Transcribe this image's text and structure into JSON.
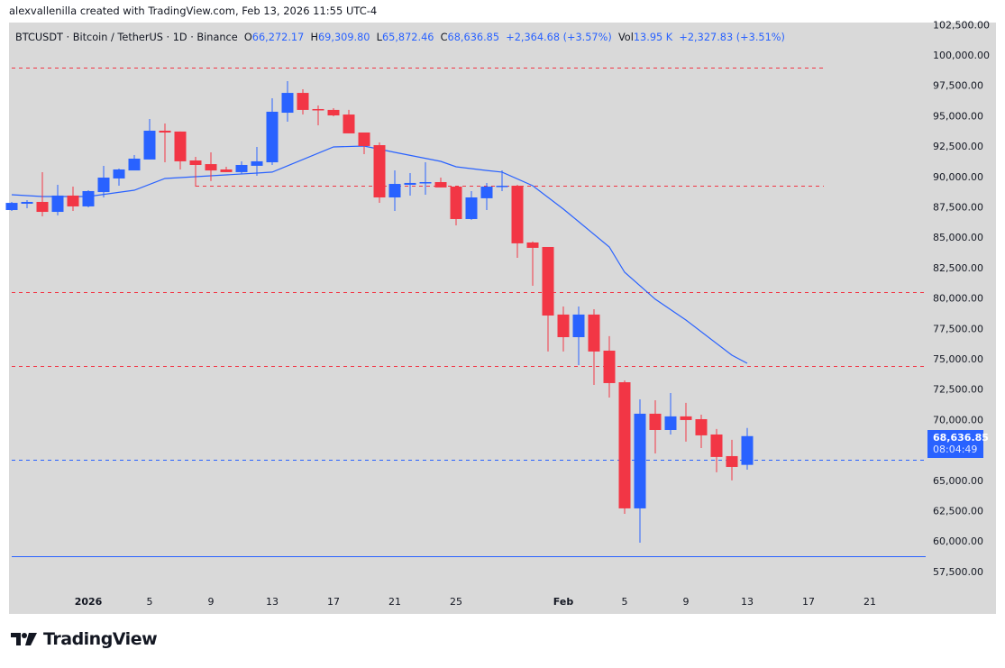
{
  "credit": "alexvallenilla created with TradingView.com, Feb 13, 2026 11:55 UTC-4",
  "legend": {
    "symbol": "BTCUSDT · Bitcoin / TetherUS · 1D · Binance",
    "o_label": "O",
    "o": "66,272.17",
    "h_label": "H",
    "h": "69,309.80",
    "l_label": "L",
    "l": "65,872.46",
    "c_label": "C",
    "c": "68,636.85",
    "change": "+2,364.68 (+3.57%)",
    "vol_label": "Vol",
    "vol": "13.95 K",
    "vol_change": "+2,327.83 (+3.51%)"
  },
  "price_tag": {
    "price": "68,636.85",
    "countdown": "08:04:49",
    "color": "#2962ff"
  },
  "logo": {
    "text": "TradingView"
  },
  "colors": {
    "up": "#2962ff",
    "down": "#f23645",
    "ma": "#2962ff",
    "background": "#d9d9d9"
  },
  "chart_data": {
    "type": "candlestick",
    "symbol": "BTCUSDT",
    "interval": "1D",
    "ylim": [
      57000,
      103000
    ],
    "y_ticks": [
      "102,500.00",
      "100,000.00",
      "97,500.00",
      "95,000.00",
      "92,500.00",
      "90,000.00",
      "87,500.00",
      "85,000.00",
      "82,500.00",
      "80,000.00",
      "77,500.00",
      "75,000.00",
      "72,500.00",
      "70,000.00",
      "65,000.00",
      "62,500.00",
      "60,000.00",
      "57,500.00"
    ],
    "y_tick_values": [
      102500,
      100000,
      97500,
      95000,
      92500,
      90000,
      87500,
      85000,
      82500,
      80000,
      77500,
      75000,
      72500,
      70000,
      65000,
      62500,
      60000,
      57500
    ],
    "x_ticks": [
      {
        "date": "2026-01-01",
        "label": "2026",
        "major": true
      },
      {
        "date": "2026-01-05",
        "label": "5"
      },
      {
        "date": "2026-01-09",
        "label": "9"
      },
      {
        "date": "2026-01-13",
        "label": "13"
      },
      {
        "date": "2026-01-17",
        "label": "17"
      },
      {
        "date": "2026-01-21",
        "label": "21"
      },
      {
        "date": "2026-01-25",
        "label": "25"
      },
      {
        "date": "2026-02-01",
        "label": "Feb",
        "major": true
      },
      {
        "date": "2026-02-05",
        "label": "5"
      },
      {
        "date": "2026-02-09",
        "label": "9"
      },
      {
        "date": "2026-02-13",
        "label": "13"
      },
      {
        "date": "2026-02-17",
        "label": "17"
      },
      {
        "date": "2026-02-21",
        "label": "21"
      }
    ],
    "candles": [
      {
        "date": "2025-12-27",
        "o": 87240,
        "h": 87910,
        "l": 87170,
        "c": 87830
      },
      {
        "date": "2025-12-28",
        "o": 87760,
        "h": 88060,
        "l": 87390,
        "c": 87910
      },
      {
        "date": "2025-12-29",
        "o": 87910,
        "h": 90360,
        "l": 86720,
        "c": 87090
      },
      {
        "date": "2025-12-30",
        "o": 87090,
        "h": 89320,
        "l": 86800,
        "c": 88430
      },
      {
        "date": "2025-12-31",
        "o": 88430,
        "h": 89170,
        "l": 87170,
        "c": 87540
      },
      {
        "date": "2026-01-01",
        "o": 87540,
        "h": 88870,
        "l": 87460,
        "c": 88800
      },
      {
        "date": "2026-01-02",
        "o": 88720,
        "h": 90880,
        "l": 88280,
        "c": 89910
      },
      {
        "date": "2026-01-03",
        "o": 89840,
        "h": 90650,
        "l": 89240,
        "c": 90580
      },
      {
        "date": "2026-01-04",
        "o": 90500,
        "h": 91770,
        "l": 90500,
        "c": 91470
      },
      {
        "date": "2026-01-05",
        "o": 91400,
        "h": 94730,
        "l": 91400,
        "c": 93770
      },
      {
        "date": "2026-01-06",
        "o": 93770,
        "h": 94360,
        "l": 91170,
        "c": 93620
      },
      {
        "date": "2026-01-07",
        "o": 93700,
        "h": 93700,
        "l": 90580,
        "c": 91250
      },
      {
        "date": "2026-01-08",
        "o": 91320,
        "h": 91620,
        "l": 89170,
        "c": 90950
      },
      {
        "date": "2026-01-09",
        "o": 91020,
        "h": 91990,
        "l": 89620,
        "c": 90500
      },
      {
        "date": "2026-01-10",
        "o": 90580,
        "h": 90800,
        "l": 90360,
        "c": 90360
      },
      {
        "date": "2026-01-11",
        "o": 90360,
        "h": 91250,
        "l": 90210,
        "c": 90950
      },
      {
        "date": "2026-01-12",
        "o": 90880,
        "h": 92430,
        "l": 90060,
        "c": 91250
      },
      {
        "date": "2026-01-13",
        "o": 91170,
        "h": 96440,
        "l": 90950,
        "c": 95330
      },
      {
        "date": "2026-01-14",
        "o": 95250,
        "h": 97850,
        "l": 94510,
        "c": 96880
      },
      {
        "date": "2026-01-15",
        "o": 96880,
        "h": 97180,
        "l": 95100,
        "c": 95480
      },
      {
        "date": "2026-01-16",
        "o": 95550,
        "h": 95850,
        "l": 94210,
        "c": 95480
      },
      {
        "date": "2026-01-17",
        "o": 95480,
        "h": 95620,
        "l": 94960,
        "c": 95030
      },
      {
        "date": "2026-01-18",
        "o": 95100,
        "h": 95480,
        "l": 93550,
        "c": 93550
      },
      {
        "date": "2026-01-19",
        "o": 93620,
        "h": 93620,
        "l": 91840,
        "c": 92510
      },
      {
        "date": "2026-01-20",
        "o": 92580,
        "h": 92800,
        "l": 87830,
        "c": 88280
      },
      {
        "date": "2026-01-21",
        "o": 88280,
        "h": 90500,
        "l": 87170,
        "c": 89390
      },
      {
        "date": "2026-01-22",
        "o": 89320,
        "h": 90280,
        "l": 88430,
        "c": 89470
      },
      {
        "date": "2026-01-23",
        "o": 89470,
        "h": 91170,
        "l": 88500,
        "c": 89540
      },
      {
        "date": "2026-01-24",
        "o": 89540,
        "h": 89910,
        "l": 89100,
        "c": 89100
      },
      {
        "date": "2026-01-25",
        "o": 89170,
        "h": 89240,
        "l": 85980,
        "c": 86500
      },
      {
        "date": "2026-01-26",
        "o": 86500,
        "h": 88800,
        "l": 86430,
        "c": 88280
      },
      {
        "date": "2026-01-27",
        "o": 88210,
        "h": 89470,
        "l": 87240,
        "c": 89170
      },
      {
        "date": "2026-01-28",
        "o": 89170,
        "h": 90500,
        "l": 88800,
        "c": 89240
      },
      {
        "date": "2026-01-29",
        "o": 89240,
        "h": 89320,
        "l": 83310,
        "c": 84500
      },
      {
        "date": "2026-01-30",
        "o": 84570,
        "h": 84650,
        "l": 81010,
        "c": 84130
      },
      {
        "date": "2026-01-31",
        "o": 84200,
        "h": 84200,
        "l": 75600,
        "c": 78560
      },
      {
        "date": "2026-02-01",
        "o": 78640,
        "h": 79300,
        "l": 75600,
        "c": 76780
      },
      {
        "date": "2026-02-02",
        "o": 76780,
        "h": 79300,
        "l": 74480,
        "c": 78640
      },
      {
        "date": "2026-02-03",
        "o": 78640,
        "h": 79080,
        "l": 72850,
        "c": 75600
      },
      {
        "date": "2026-02-04",
        "o": 75670,
        "h": 76860,
        "l": 71810,
        "c": 73000
      },
      {
        "date": "2026-02-05",
        "o": 73070,
        "h": 73220,
        "l": 62240,
        "c": 62690
      },
      {
        "date": "2026-02-06",
        "o": 62690,
        "h": 71660,
        "l": 59870,
        "c": 70480
      },
      {
        "date": "2026-02-07",
        "o": 70480,
        "h": 71590,
        "l": 67210,
        "c": 69140
      },
      {
        "date": "2026-02-08",
        "o": 69140,
        "h": 72180,
        "l": 68770,
        "c": 70260
      },
      {
        "date": "2026-02-09",
        "o": 70260,
        "h": 71370,
        "l": 68180,
        "c": 69960
      },
      {
        "date": "2026-02-10",
        "o": 70030,
        "h": 70400,
        "l": 67660,
        "c": 68700
      },
      {
        "date": "2026-02-11",
        "o": 68770,
        "h": 69220,
        "l": 65660,
        "c": 66920
      },
      {
        "date": "2026-02-12",
        "o": 66990,
        "h": 68330,
        "l": 64990,
        "c": 66100
      },
      {
        "date": "2026-02-13",
        "o": 66272.17,
        "h": 69309.8,
        "l": 65872.46,
        "c": 68636.85
      }
    ],
    "moving_average": [
      [
        "2025-12-27",
        88500
      ],
      [
        "2025-12-29",
        88350
      ],
      [
        "2026-01-01",
        88350
      ],
      [
        "2026-01-04",
        88870
      ],
      [
        "2026-01-06",
        89840
      ],
      [
        "2026-01-12",
        90280
      ],
      [
        "2026-01-13",
        90360
      ],
      [
        "2026-01-14",
        90880
      ],
      [
        "2026-01-17",
        92430
      ],
      [
        "2026-01-19",
        92510
      ],
      [
        "2026-01-21",
        91990
      ],
      [
        "2026-01-24",
        91250
      ],
      [
        "2026-01-25",
        90800
      ],
      [
        "2026-01-27",
        90500
      ],
      [
        "2026-01-28",
        90360
      ],
      [
        "2026-01-30",
        89240
      ],
      [
        "2026-02-01",
        87320
      ],
      [
        "2026-02-02",
        86280
      ],
      [
        "2026-02-04",
        84200
      ],
      [
        "2026-02-05",
        82120
      ],
      [
        "2026-02-07",
        79900
      ],
      [
        "2026-02-09",
        78190
      ],
      [
        "2026-02-12",
        75300
      ],
      [
        "2026-02-13",
        74630
      ]
    ],
    "horizontal_lines": [
      {
        "price": 98960,
        "color": "#f23645",
        "style": "dashed",
        "from": "2025-12-27",
        "to": "2026-02-18"
      },
      {
        "price": 89240,
        "color": "#f23645",
        "style": "dashed",
        "from": "2026-01-08",
        "to": "2026-02-18"
      },
      {
        "price": 80490,
        "color": "#f23645",
        "style": "dashed",
        "from": "2025-12-27",
        "to": null
      },
      {
        "price": 74410,
        "color": "#f23645",
        "style": "dashed",
        "from": "2025-12-27",
        "to": null
      },
      {
        "price": 66690,
        "color": "#2962ff",
        "style": "dashed",
        "from": "2025-12-27",
        "to": null
      },
      {
        "price": 58750,
        "color": "#2962ff",
        "style": "solid",
        "from": "2025-12-27",
        "to": null
      }
    ],
    "grid": false,
    "price_scale": "right"
  }
}
